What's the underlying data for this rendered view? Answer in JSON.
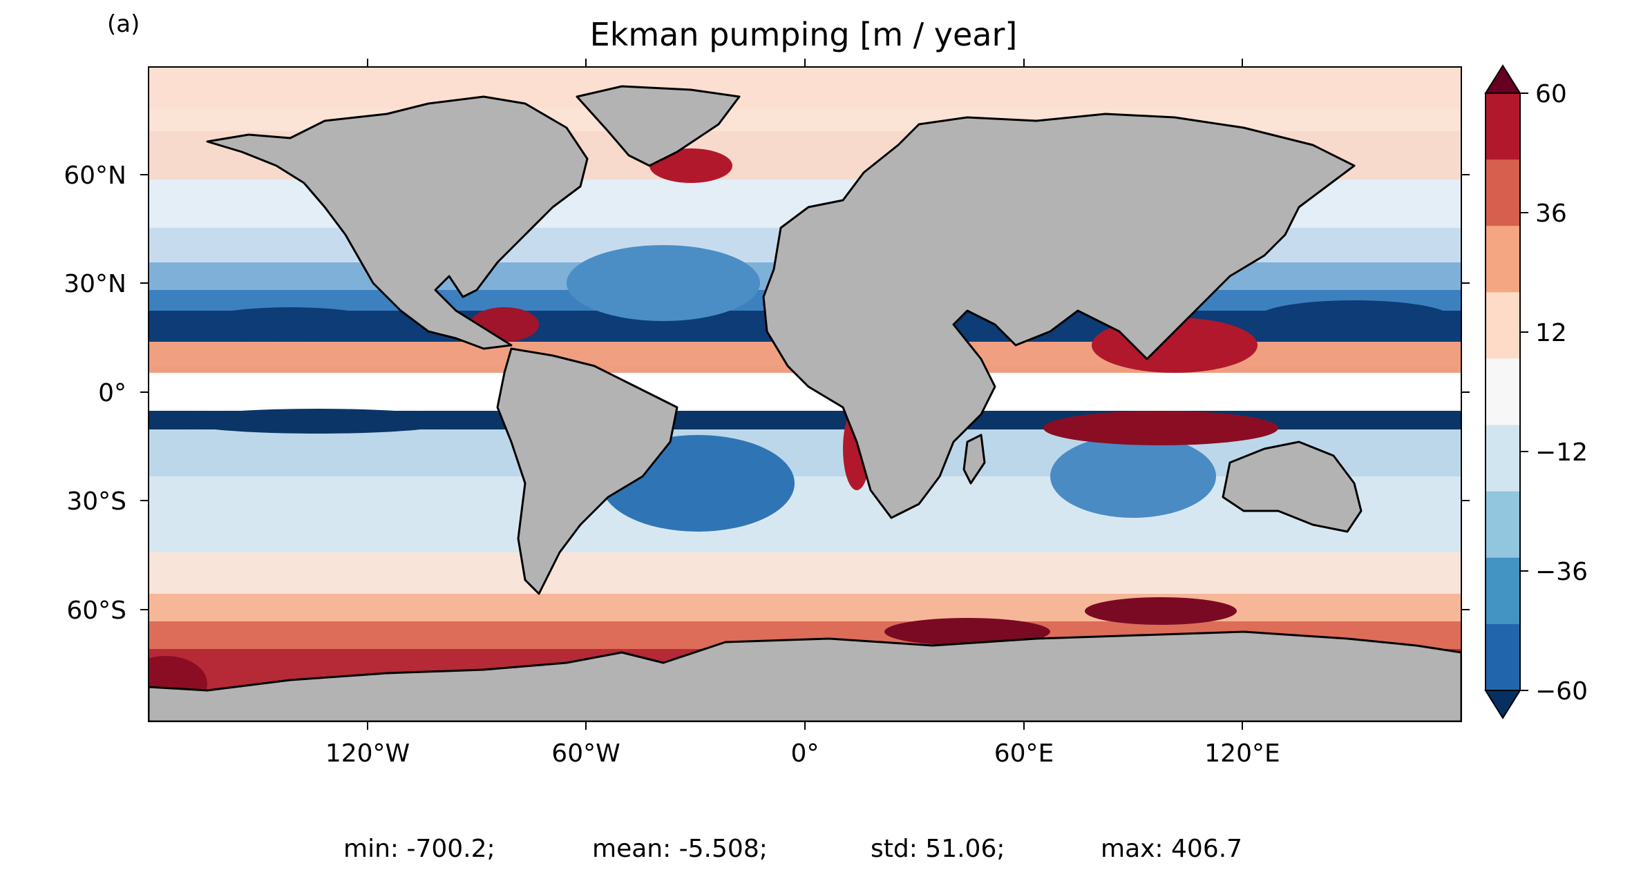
{
  "panel_label": "(a)",
  "title": "Ekman pumping [m / year]",
  "lat_ticks": [
    "60°N",
    "30°N",
    "0°",
    "30°S",
    "60°S"
  ],
  "lon_ticks": [
    "120°W",
    "60°W",
    "0°",
    "60°E",
    "120°E"
  ],
  "colorbar": {
    "ticks": [
      "60",
      "36",
      "12",
      "−12",
      "−36",
      "−60"
    ],
    "levels": [
      -60,
      -48,
      -36,
      -24,
      -12,
      0,
      12,
      24,
      36,
      48,
      60
    ],
    "colors": [
      "#053061",
      "#2166ac",
      "#4393c3",
      "#92c5de",
      "#d1e5f0",
      "#f7f7f7",
      "#fddbc7",
      "#f4a582",
      "#d6604d",
      "#b2182b",
      "#67001f"
    ],
    "extend": "both"
  },
  "stats": {
    "min": "min: -700.2;",
    "mean": "mean: -5.508;",
    "std": "std: 51.06;",
    "max": "max: 406.7"
  },
  "land_color": "#b3b3b3"
}
